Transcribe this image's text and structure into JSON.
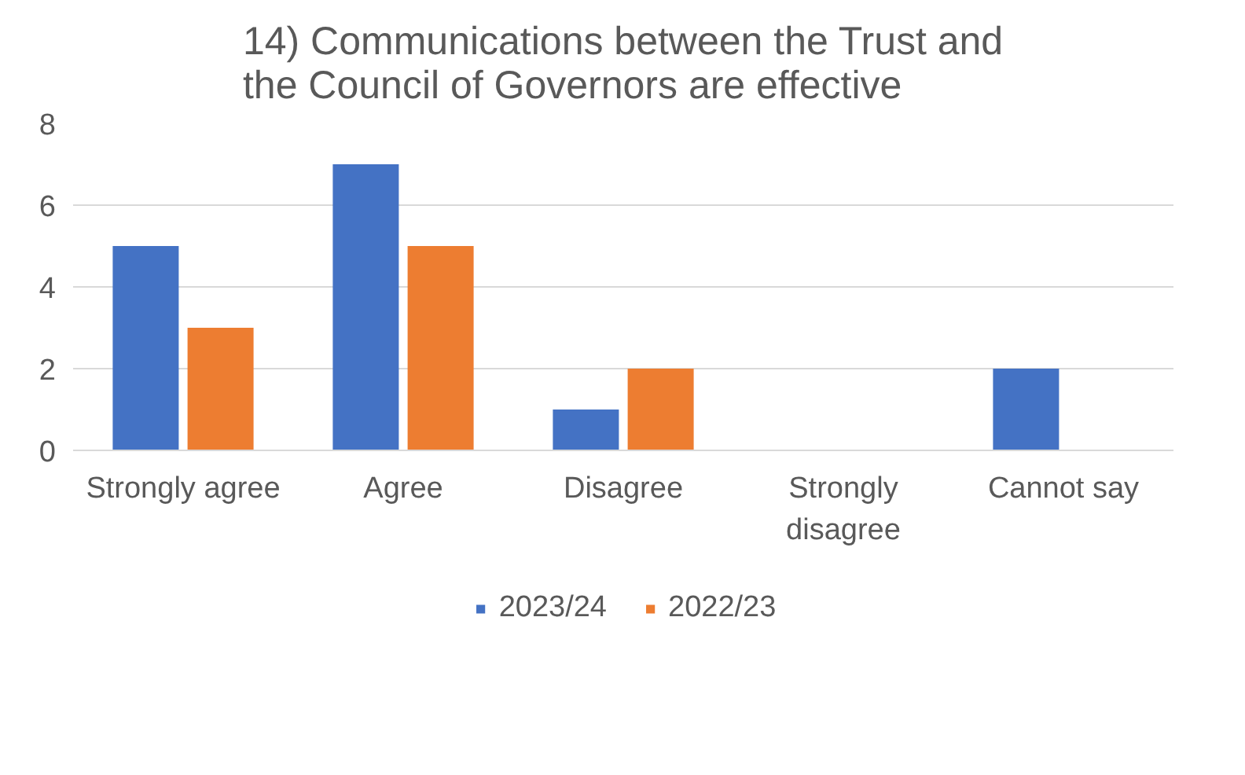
{
  "chart_data": {
    "type": "bar",
    "title": "14) Communications between the Trust and the Council of Governors are effective",
    "categories": [
      "Strongly agree",
      "Agree",
      "Disagree",
      "Strongly disagree",
      "Cannot say"
    ],
    "series": [
      {
        "name": "2023/24",
        "color": "#4472c4",
        "values": [
          5,
          7,
          1,
          0,
          2
        ]
      },
      {
        "name": "2022/23",
        "color": "#ed7d31",
        "values": [
          3,
          5,
          2,
          0,
          0
        ]
      }
    ],
    "ylim": [
      0,
      8
    ],
    "yticks": [
      0,
      2,
      4,
      6,
      8
    ],
    "grid": "y",
    "legend": "bottom"
  }
}
